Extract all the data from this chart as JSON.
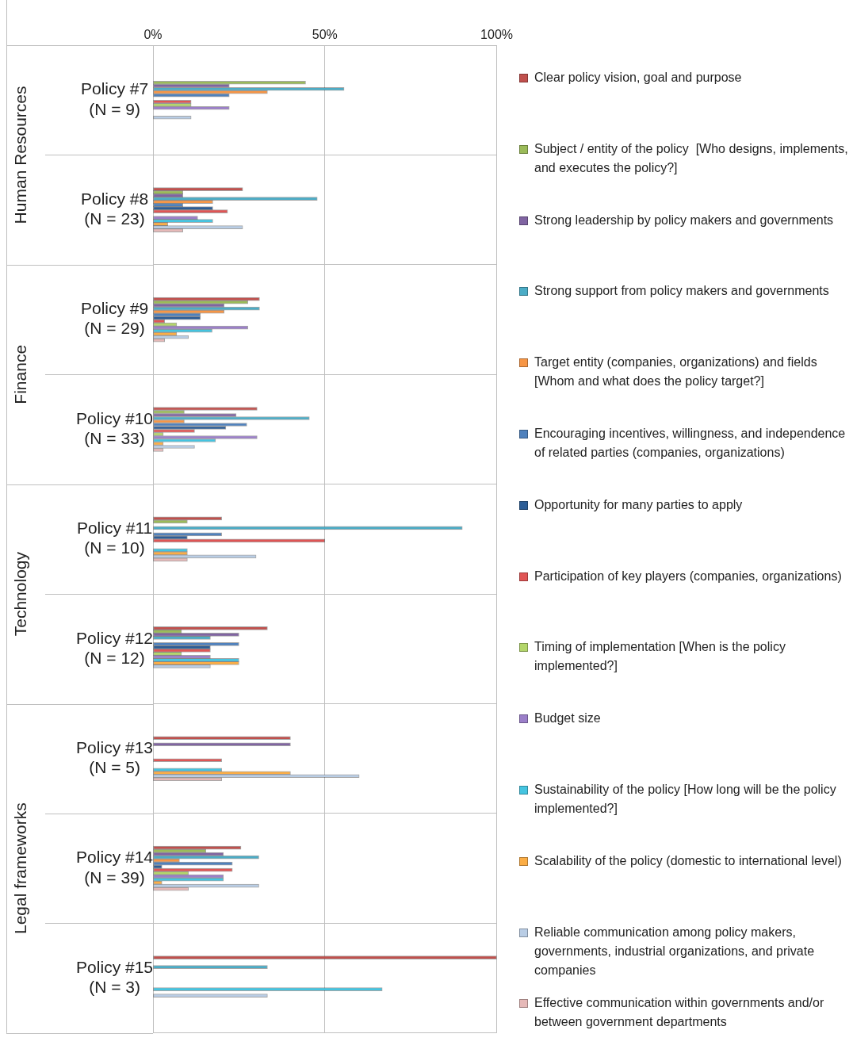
{
  "chart_data": {
    "type": "bar",
    "orientation": "horizontal",
    "grid": true,
    "legend": "right",
    "categories": [
      "Policy #7\n(N = 9)",
      "Policy #8\n(N = 23)",
      "Policy #9\n(N = 29)",
      "Policy #10\n(N = 33)",
      "Policy #11\n(N = 10)",
      "Policy #12\n(N = 12)",
      "Policy #13\n(N = 5)",
      "Policy #14\n(N = 39)",
      "Policy #15\n(N = 3)"
    ],
    "xlim": [
      0,
      100
    ],
    "xticks": [
      {
        "value": 0,
        "label": "0%"
      },
      {
        "value": 50,
        "label": "50%"
      },
      {
        "value": 100,
        "label": "100%"
      }
    ],
    "annotations": [
      "Human Resources",
      "Finance",
      "Technology",
      "Legal frameworks"
    ],
    "series": [
      {
        "name": "Clear policy vision, goal and purpose",
        "color": "#c0504d",
        "values": [
          0,
          26.1,
          31.0,
          30.3,
          20,
          33.3,
          40,
          25.6,
          100
        ]
      },
      {
        "name": "Subject / entity of the policy  [Who designs, implements, and executes the policy?]",
        "color": "#9bbb59",
        "values": [
          44.4,
          8.7,
          27.6,
          9.1,
          10,
          8.3,
          0,
          15.4,
          0
        ]
      },
      {
        "name": "Strong leadership by policy makers and governments",
        "color": "#8064a2",
        "values": [
          22.2,
          8.7,
          20.7,
          24.2,
          0,
          25,
          40,
          20.5,
          0
        ]
      },
      {
        "name": "Strong support from policy makers and governments",
        "color": "#4bacc6",
        "values": [
          55.6,
          47.8,
          31.0,
          45.5,
          90,
          16.7,
          0,
          30.8,
          33.3
        ]
      },
      {
        "name": "Target entity (companies, organizations) and fields [Whom and what does the policy target?]",
        "color": "#f79646",
        "values": [
          33.3,
          17.4,
          20.7,
          9.1,
          0,
          0,
          0,
          7.7,
          0
        ]
      },
      {
        "name": "Encouraging incentives, willingness, and independence of related parties (companies, organizations)",
        "color": "#4f81bd",
        "values": [
          22.2,
          8.7,
          13.8,
          27.3,
          20,
          25,
          0,
          23.1,
          0
        ]
      },
      {
        "name": "Opportunity for many parties to apply",
        "color": "#2c5d96",
        "values": [
          0,
          17.4,
          13.8,
          21.2,
          10,
          16.7,
          0,
          2.6,
          0
        ]
      },
      {
        "name": "Participation of key players (companies, organizations)",
        "color": "#e05555",
        "values": [
          11.1,
          21.7,
          3.4,
          12.1,
          50,
          16.7,
          20,
          23.1,
          0
        ]
      },
      {
        "name": "Timing of implementation [When is the policy implemented?]",
        "color": "#b3d66a",
        "values": [
          11.1,
          0,
          6.9,
          3.0,
          0,
          8.3,
          0,
          10.3,
          0
        ]
      },
      {
        "name": "Budget size",
        "color": "#9b7fc9",
        "values": [
          22.2,
          13.0,
          27.6,
          30.3,
          0,
          16.7,
          0,
          20.5,
          0
        ]
      },
      {
        "name": "Sustainability of the policy [How long will be the policy implemented?]",
        "color": "#45c4e0",
        "values": [
          0,
          17.4,
          17.2,
          18.2,
          10,
          25,
          20,
          20.5,
          66.7
        ]
      },
      {
        "name": "Scalability of the policy (domestic to international level)",
        "color": "#fbad45",
        "values": [
          0,
          4.3,
          6.9,
          3.0,
          10,
          25,
          40,
          2.6,
          0
        ]
      },
      {
        "name": "Reliable communication among policy makers, governments, industrial organizations, and private companies",
        "color": "#b9cde5",
        "values": [
          11.1,
          26.1,
          10.3,
          12.1,
          30,
          16.7,
          60,
          30.8,
          33.3
        ]
      },
      {
        "name": "Effective communication within governments and/or between government departments",
        "color": "#e6b9b8",
        "values": [
          0,
          8.7,
          3.4,
          3.0,
          10,
          0,
          20,
          10.3,
          0
        ]
      }
    ]
  }
}
